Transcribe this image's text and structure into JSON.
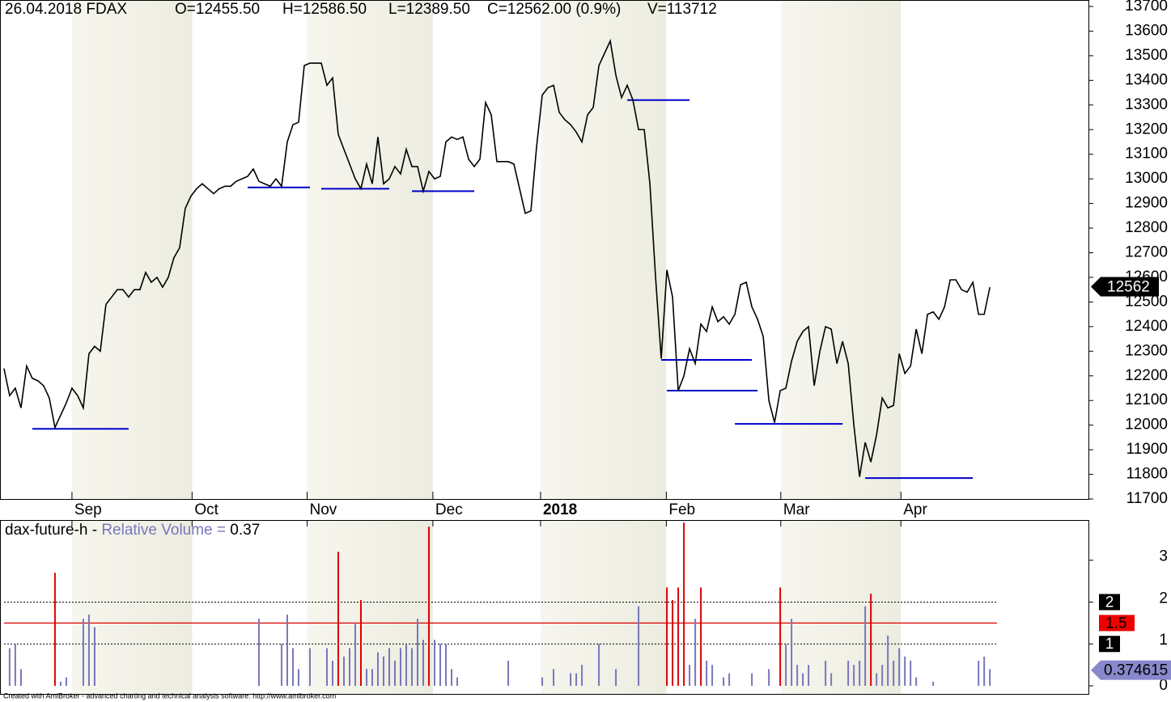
{
  "chart_data": {
    "type": "line",
    "header": [
      "26.04.2018 FDAX",
      "O=12455.50",
      "H=12586.50",
      "L=12389.50",
      "C=12562.00 (0.9%)",
      "V=113712"
    ],
    "color": "#000000",
    "values": [
      12230,
      12120,
      12150,
      12070,
      12240,
      12190,
      12180,
      12160,
      12110,
      11990,
      12040,
      12090,
      12150,
      12120,
      12070,
      12290,
      12320,
      12300,
      12490,
      12520,
      12550,
      12550,
      12520,
      12550,
      12550,
      12620,
      12580,
      12600,
      12560,
      12600,
      12680,
      12720,
      12880,
      12930,
      12960,
      12980,
      12960,
      12940,
      12960,
      12970,
      12970,
      12990,
      13000,
      13010,
      13040,
      12990,
      12980,
      12970,
      13000,
      12970,
      13150,
      13220,
      13230,
      13460,
      13470,
      13470,
      13470,
      13380,
      13410,
      13180,
      13120,
      13060,
      13000,
      12960,
      13060,
      12980,
      13170,
      12980,
      13000,
      13050,
      13020,
      13120,
      13050,
      13050,
      12950,
      13030,
      13000,
      13010,
      13150,
      13170,
      13160,
      13170,
      13080,
      13050,
      13080,
      13310,
      13260,
      13070,
      13070,
      13070,
      13060,
      12960,
      12860,
      12870,
      13130,
      13340,
      13370,
      13380,
      13270,
      13240,
      13220,
      13190,
      13150,
      13260,
      13290,
      13460,
      13510,
      13560,
      13420,
      13330,
      13380,
      13320,
      13200,
      13200,
      12980,
      12600,
      12270,
      12630,
      12520,
      12140,
      12200,
      12310,
      12250,
      12410,
      12380,
      12480,
      12420,
      12440,
      12410,
      12450,
      12570,
      12580,
      12480,
      12430,
      12360,
      12100,
      12010,
      12140,
      12150,
      12260,
      12340,
      12380,
      12400,
      12160,
      12300,
      12400,
      12390,
      12250,
      12340,
      12250,
      12000,
      11790,
      11930,
      11850,
      11960,
      12110,
      12070,
      12080,
      12290,
      12210,
      12240,
      12390,
      12290,
      12450,
      12460,
      12430,
      12480,
      12590,
      12590,
      12550,
      12540,
      12580,
      12450,
      12450,
      12560
    ],
    "xlim": [
      -0.7,
      191.4
    ],
    "xticks": [
      {
        "value": 12,
        "label": "Sep"
      },
      {
        "value": 33.2,
        "label": "Oct"
      },
      {
        "value": 53.5,
        "label": "Nov"
      },
      {
        "value": 75.7,
        "label": "Dec"
      },
      {
        "value": 94.7,
        "label": "2018"
      },
      {
        "value": 116.9,
        "label": "Feb"
      },
      {
        "value": 137.1,
        "label": "Mar"
      },
      {
        "value": 158.3,
        "label": "Apr"
      }
    ],
    "ylim": [
      11700,
      13700
    ],
    "yticks": [
      11700,
      11800,
      11900,
      12000,
      12100,
      12200,
      12300,
      12400,
      12500,
      12600,
      12700,
      12800,
      12900,
      13000,
      13100,
      13200,
      13300,
      13400,
      13500,
      13600,
      13700
    ],
    "last": 12562,
    "support_lines": {
      "color": "#0000cc",
      "levels": [
        {
          "value": 11985,
          "x": [
            5,
            22
          ]
        },
        {
          "value": 12965,
          "x": [
            43,
            54
          ]
        },
        {
          "value": 12960,
          "x": [
            56,
            68
          ]
        },
        {
          "value": 12950,
          "x": [
            72,
            83
          ]
        },
        {
          "value": 13320,
          "x": [
            110,
            121
          ]
        },
        {
          "value": 12265,
          "x": [
            116,
            132
          ]
        },
        {
          "value": 12140,
          "x": [
            117,
            133
          ]
        },
        {
          "value": 12005,
          "x": [
            129,
            148
          ]
        },
        {
          "value": 11785,
          "x": [
            152,
            171
          ]
        }
      ]
    },
    "volume": {
      "prefix": "dax-future-h -",
      "title": "Relative Volume =",
      "title_value": 0.37,
      "ylim": [
        0,
        3.96
      ],
      "yticks": [
        0,
        1,
        2,
        3
      ],
      "dotted_levels": [
        1,
        2
      ],
      "threshold": 1.5,
      "current": 0.374615,
      "bars": {
        "color": "#7777bb",
        "x": [
          1,
          2,
          3,
          10,
          11,
          14,
          15,
          16,
          45,
          49,
          50,
          51,
          52,
          54,
          57,
          58,
          60,
          61,
          62,
          64,
          65,
          66,
          67,
          68,
          69,
          70,
          71,
          72,
          73,
          74,
          76,
          77,
          78,
          79,
          80,
          89,
          95,
          97,
          100,
          101,
          102,
          105,
          108,
          112,
          121,
          122,
          124,
          125,
          127,
          128,
          132,
          135,
          138,
          139,
          140,
          141,
          142,
          145,
          146,
          149,
          150,
          151,
          152,
          154,
          155,
          156,
          157,
          158,
          159,
          160,
          161,
          164,
          172,
          173,
          174
        ],
        "values": [
          0.9,
          1.0,
          0.4,
          0.1,
          0.2,
          1.6,
          1.7,
          1.4,
          1.6,
          1.0,
          1.7,
          0.9,
          0.4,
          0.9,
          0.9,
          0.6,
          0.7,
          0.9,
          1.5,
          0.4,
          0.4,
          0.8,
          0.7,
          0.9,
          0.6,
          0.9,
          1.0,
          0.9,
          1.6,
          1.1,
          1.1,
          1.0,
          1.0,
          0.4,
          0.2,
          0.6,
          0.2,
          0.4,
          0.3,
          0.3,
          0.5,
          1.0,
          0.4,
          1.9,
          0.5,
          1.6,
          0.6,
          0.5,
          0.2,
          0.3,
          0.3,
          0.4,
          1.0,
          1.6,
          0.5,
          0.3,
          0.5,
          0.6,
          0.3,
          0.6,
          0.5,
          0.6,
          1.9,
          0.3,
          0.5,
          1.2,
          0.6,
          0.9,
          0.7,
          0.6,
          0.2,
          0.1,
          0.6,
          0.7,
          0.4
        ]
      },
      "spikes": {
        "color": "#dd0000",
        "x": [
          9,
          59,
          63,
          75,
          117,
          118,
          119,
          120,
          123,
          137,
          153
        ],
        "values": [
          2.7,
          3.2,
          2.05,
          3.8,
          2.35,
          2.05,
          2.35,
          3.9,
          2.35,
          2.35,
          2.2
        ]
      }
    },
    "footer": "Created with AmiBroker - advanced charting and technical analysis software. http://www.amibroker.com"
  }
}
